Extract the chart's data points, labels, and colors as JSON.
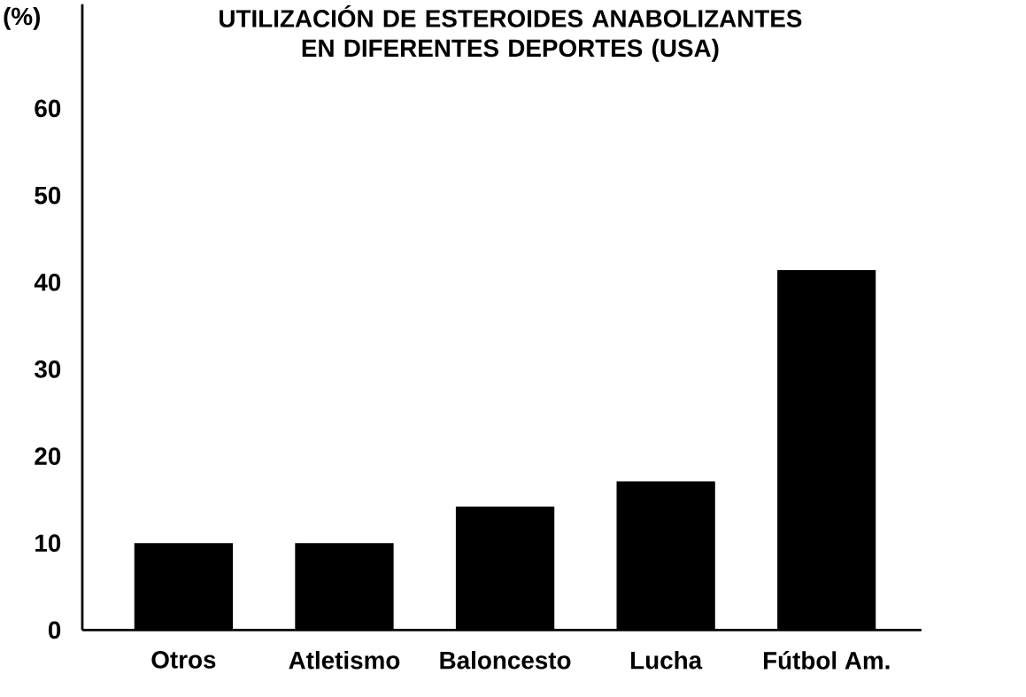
{
  "chart_data": {
    "type": "bar",
    "title": "UTILIZACIÓN DE ESTEROIDES ANABOLIZANTES EN DIFERENTES DEPORTES (USA)",
    "ylabel": "(%)",
    "categories": [
      "Otros",
      "Atletismo",
      "Baloncesto",
      "Lucha",
      "Fútbol Am."
    ],
    "values": [
      10,
      10,
      14.2,
      17.1,
      41.4
    ],
    "color": "#000000",
    "ylim": [
      0,
      72
    ],
    "yticks": [
      0,
      10,
      20,
      30,
      40,
      50,
      60
    ]
  }
}
